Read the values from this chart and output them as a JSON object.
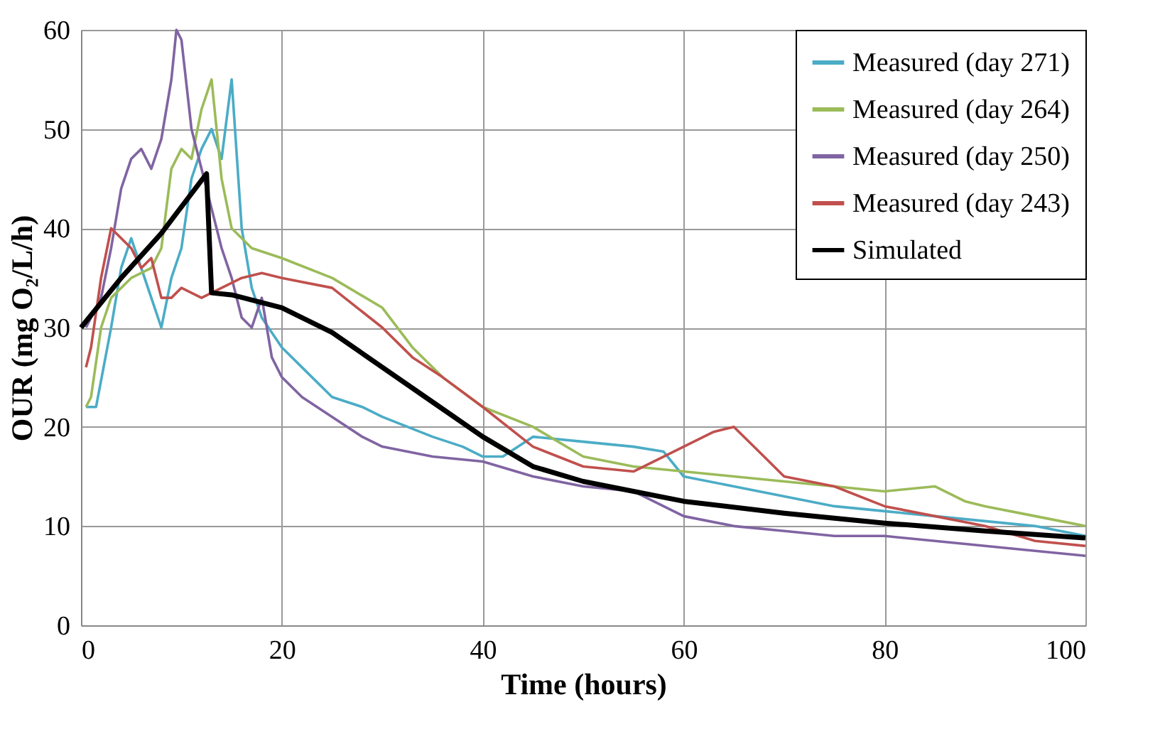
{
  "chart_data": {
    "type": "line",
    "xlabel": "Time (hours)",
    "ylabel": "OUR (mg O₂/L/h)",
    "xlim": [
      0,
      100
    ],
    "xticks": [
      0,
      20,
      40,
      60,
      80,
      100
    ],
    "ylim": [
      0,
      60
    ],
    "yticks": [
      0,
      10,
      20,
      30,
      40,
      50,
      60
    ],
    "grid": true,
    "legend": "top right",
    "marker": "none",
    "line_style": "solid",
    "series": [
      {
        "name": "Measured (day 271)",
        "color": "#4bacc6",
        "x": [
          0.5,
          1.5,
          3,
          4,
          5,
          6,
          7,
          8,
          9,
          10,
          11,
          12,
          13,
          14,
          15,
          16,
          17,
          18,
          20,
          22,
          25,
          28,
          30,
          35,
          38,
          40,
          42,
          45,
          50,
          55,
          58,
          60,
          65,
          70,
          75,
          80,
          85,
          90,
          95,
          100
        ],
        "values": [
          22,
          22,
          30,
          36,
          39,
          36,
          33,
          30,
          35,
          38,
          45,
          48,
          50,
          47,
          55,
          40,
          34,
          31,
          28,
          26,
          23,
          22,
          21,
          19,
          18,
          17,
          17,
          19,
          18.5,
          18,
          17.5,
          15,
          14,
          13,
          12,
          11.5,
          11,
          10.5,
          10,
          9
        ]
      },
      {
        "name": "Measured (day 264)",
        "color": "#9bbb59",
        "x": [
          0.5,
          1,
          2,
          3,
          5,
          7,
          8,
          9,
          10,
          11,
          12,
          13,
          14,
          15,
          17,
          20,
          25,
          30,
          33,
          36,
          40,
          45,
          50,
          55,
          60,
          65,
          70,
          75,
          80,
          85,
          88,
          90,
          95,
          100
        ],
        "values": [
          22,
          23,
          30,
          33,
          35,
          36,
          38,
          46,
          48,
          47,
          52,
          55,
          45,
          40,
          38,
          37,
          35,
          32,
          28,
          25,
          22,
          20,
          17,
          16,
          15.5,
          15,
          14.5,
          14,
          13.5,
          14,
          12.5,
          12,
          11,
          10
        ]
      },
      {
        "name": "Measured (day 250)",
        "color": "#8064a2",
        "x": [
          0.5,
          2,
          3,
          4,
          5,
          6,
          7,
          8,
          9,
          9.5,
          10,
          11,
          12,
          13,
          14,
          15,
          16,
          17,
          18,
          19,
          20,
          22,
          25,
          28,
          30,
          35,
          40,
          45,
          50,
          55,
          60,
          65,
          70,
          75,
          80,
          85,
          90,
          95,
          100
        ],
        "values": [
          30,
          33,
          38,
          44,
          47,
          48,
          46,
          49,
          55,
          60,
          59,
          50,
          46,
          42,
          38,
          35,
          31,
          30,
          33,
          27,
          25,
          23,
          21,
          19,
          18,
          17,
          16.5,
          15,
          14,
          13.5,
          11,
          10,
          9.5,
          9,
          9,
          8.5,
          8,
          7.5,
          7
        ]
      },
      {
        "name": "Measured (day 243)",
        "color": "#c0504d",
        "x": [
          0.5,
          1,
          2,
          3,
          4,
          5,
          6,
          7,
          8,
          9,
          10,
          12,
          14,
          16,
          18,
          20,
          25,
          30,
          33,
          36,
          40,
          45,
          50,
          55,
          58,
          60,
          63,
          65,
          68,
          70,
          75,
          80,
          85,
          90,
          95,
          100
        ],
        "values": [
          26,
          28,
          35,
          40,
          39,
          38,
          36,
          37,
          33,
          33,
          34,
          33,
          34,
          35,
          35.5,
          35,
          34,
          30,
          27,
          25,
          22,
          18,
          16,
          15.5,
          17,
          18,
          19.5,
          20,
          17,
          15,
          14,
          12,
          11,
          10,
          8.5,
          8
        ]
      },
      {
        "name": "Simulated",
        "color": "#000000",
        "x": [
          0,
          4,
          8,
          12.5,
          13,
          15,
          20,
          25,
          30,
          35,
          40,
          45,
          50,
          60,
          70,
          80,
          90,
          100
        ],
        "values": [
          30,
          35,
          39.5,
          45.5,
          33.5,
          33.3,
          32,
          29.5,
          26,
          22.5,
          19,
          16,
          14.5,
          12.5,
          11.3,
          10.3,
          9.5,
          8.8
        ]
      }
    ]
  }
}
